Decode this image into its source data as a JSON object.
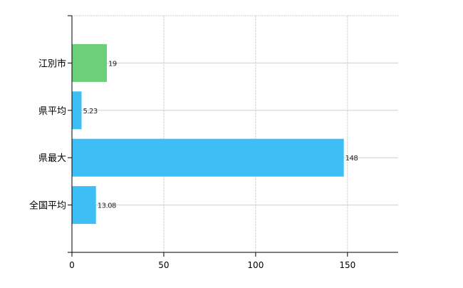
{
  "chart_data": {
    "type": "bar",
    "orientation": "horizontal",
    "categories": [
      "江別市",
      "県平均",
      "県最大",
      "全国平均"
    ],
    "values": [
      19,
      5.23,
      148,
      13.08
    ],
    "data_labels": [
      "19",
      "5.23",
      "148",
      "13.08"
    ],
    "bar_colors": [
      "#6ccf7a",
      "#3dbff5",
      "#3dbff5",
      "#3dbff5"
    ],
    "xticks": [
      0,
      50,
      100,
      150
    ],
    "xtick_labels": [
      "0",
      "50",
      "100",
      "150"
    ],
    "xlim": [
      0,
      177.6
    ],
    "title": "",
    "xlabel": "",
    "ylabel": "",
    "grid": true,
    "legend": "none"
  }
}
